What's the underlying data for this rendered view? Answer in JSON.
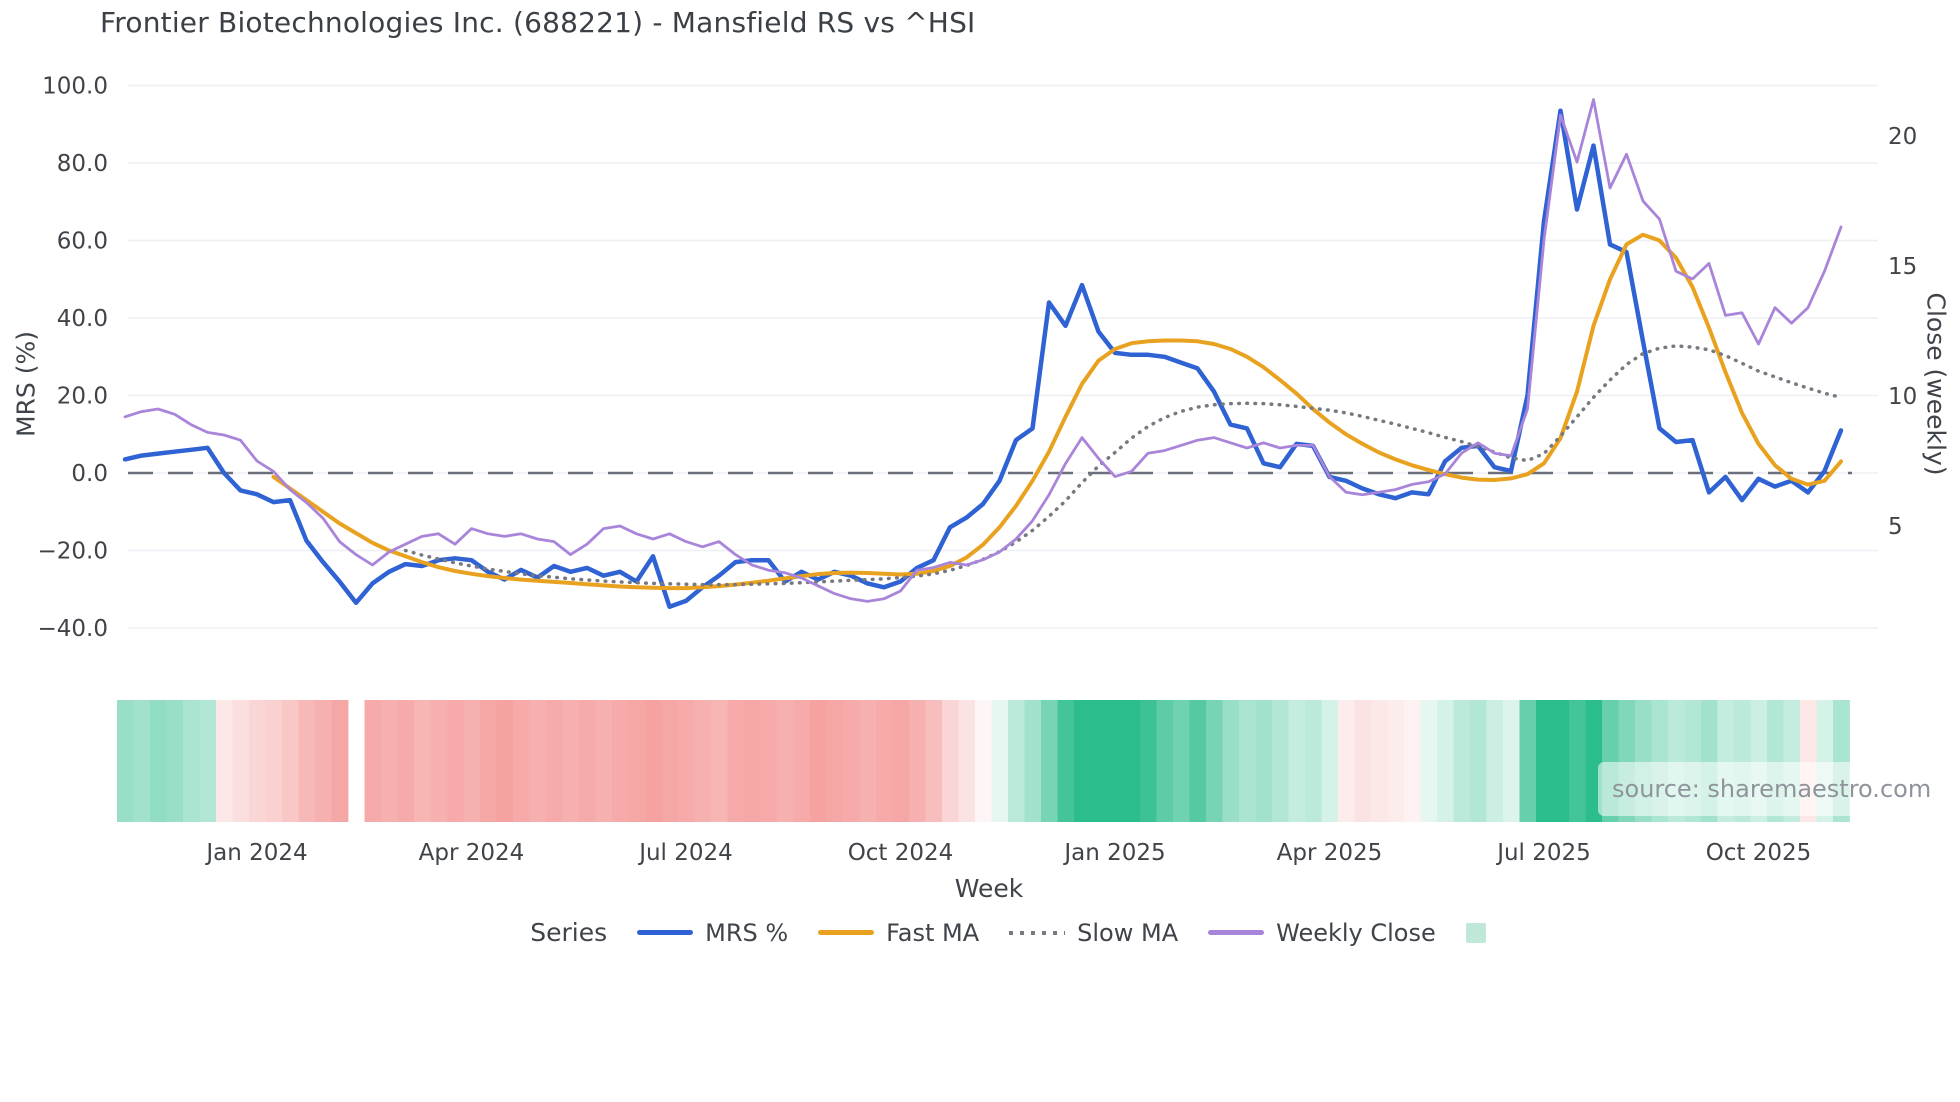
{
  "source": "source: sharemaestro.com",
  "legend": {
    "label": "Series"
  },
  "colors": {
    "mrs": "#2f62d3",
    "fast_ma": "#e9a21f",
    "slow_ma": "#76797f",
    "weekly_close": "#a985da",
    "zero_line": "#6b6f7a",
    "gridline": "#edeff4",
    "heat_green": "#2bbd8b",
    "heat_red": "#f28b89",
    "legend_square": "#bfe8d8",
    "tick_text": "#404449"
  },
  "chart_data": {
    "type": "line",
    "title": "Frontier Biotechnologies Inc. (688221) - Mansfield RS vs ^HSI",
    "x_axis": {
      "title": "Week",
      "tick_weeks": [
        8,
        21,
        34,
        47,
        60,
        73,
        86,
        99
      ],
      "tick_labels": [
        "Jan 2024",
        "Apr 2024",
        "Jul 2024",
        "Oct 2024",
        "Jan 2025",
        "Apr 2025",
        "Jul 2025",
        "Oct 2025"
      ]
    },
    "left_axis": {
      "title": "MRS (%)",
      "ticks": [
        100,
        80,
        60,
        40,
        20,
        0,
        -20,
        -40
      ],
      "tick_labels": [
        "100.0",
        "80.0",
        "60.0",
        "40.0",
        "20.0",
        "0.0",
        "−20.0",
        "−40.0"
      ]
    },
    "right_axis": {
      "title": "Close (weekly)",
      "ticks": [
        20,
        15,
        10,
        5
      ],
      "tick_labels": [
        "20",
        "15",
        "10",
        "5"
      ]
    },
    "weeks": 105,
    "zero_line": 0,
    "series": [
      {
        "name": "MRS %",
        "axis": "left",
        "style": "solid",
        "color": "#2f62d3",
        "values": [
          3.5,
          4.5,
          5,
          5.5,
          6,
          6.5,
          0,
          -4.5,
          -5.5,
          -7.5,
          -7,
          -17.5,
          -23,
          -28,
          -33.5,
          -28.5,
          -25.5,
          -23.5,
          -24,
          -22.5,
          -22,
          -22.5,
          -25.5,
          -27.5,
          -25,
          -27,
          -24,
          -25.5,
          -24.5,
          -26.5,
          -25.5,
          -28,
          -21.5,
          -34.5,
          -33,
          -29.5,
          -26.5,
          -23,
          -22.5,
          -22.5,
          -28,
          -25.5,
          -27.5,
          -25.5,
          -26.5,
          -28.5,
          -29.5,
          -28,
          -24.5,
          -22.5,
          -14,
          -11.5,
          -8,
          -2,
          8.5,
          11.5,
          44,
          38,
          48.5,
          36.5,
          31,
          30.5,
          30.5,
          30,
          28.5,
          27,
          21,
          12.5,
          11.5,
          2.5,
          1.5,
          7.5,
          7,
          -1,
          -2,
          -4,
          -5.5,
          -6.5,
          -5,
          -5.5,
          3,
          6.5,
          7,
          1.5,
          0.5,
          20,
          65,
          93.5,
          68,
          84.5,
          59,
          57,
          34,
          11.5,
          8,
          8.5,
          -5,
          -1,
          -7,
          -1.5,
          -3.5,
          -2,
          -5,
          0.5,
          11
        ]
      },
      {
        "name": "Fast MA",
        "axis": "left",
        "style": "solid",
        "color": "#e9a21f",
        "values": [
          null,
          null,
          null,
          null,
          null,
          null,
          null,
          null,
          null,
          -1,
          -4,
          -7,
          -10,
          -13,
          -15.5,
          -18,
          -20,
          -21.5,
          -23,
          -24.3,
          -25.3,
          -26,
          -26.6,
          -27.1,
          -27.5,
          -27.8,
          -28.1,
          -28.4,
          -28.7,
          -29,
          -29.3,
          -29.5,
          -29.6,
          -29.7,
          -29.7,
          -29.5,
          -29.2,
          -28.8,
          -28.3,
          -27.8,
          -27.2,
          -26.6,
          -26.1,
          -25.8,
          -25.7,
          -25.8,
          -26,
          -26.2,
          -26,
          -25.3,
          -24,
          -21.8,
          -18.5,
          -14,
          -8.5,
          -2,
          5.5,
          14.5,
          23,
          29,
          32,
          33.5,
          34,
          34.2,
          34.2,
          34,
          33.3,
          32,
          30,
          27.3,
          24,
          20.5,
          16.5,
          13,
          10,
          7.5,
          5.3,
          3.5,
          2,
          0.8,
          -0.3,
          -1.2,
          -1.7,
          -1.8,
          -1.4,
          -0.3,
          2.5,
          9,
          21,
          38,
          50,
          59,
          61.5,
          60,
          55.5,
          48,
          37.5,
          26,
          15.5,
          7.5,
          2,
          -1.5,
          -3,
          -2,
          3
        ]
      },
      {
        "name": "Slow MA",
        "axis": "left",
        "style": "dotted",
        "color": "#76797f",
        "values": [
          null,
          null,
          null,
          null,
          null,
          null,
          null,
          null,
          null,
          null,
          null,
          null,
          null,
          null,
          null,
          null,
          null,
          -20,
          -21.2,
          -22.2,
          -23.2,
          -24,
          -24.8,
          -25.4,
          -26,
          -26.5,
          -26.9,
          -27.3,
          -27.6,
          -27.9,
          -28.1,
          -28.3,
          -28.5,
          -28.6,
          -28.7,
          -28.8,
          -28.8,
          -28.8,
          -28.7,
          -28.6,
          -28.5,
          -28.3,
          -28.1,
          -27.9,
          -27.7,
          -27.5,
          -27.3,
          -27,
          -26.6,
          -26,
          -25.1,
          -23.9,
          -22.3,
          -20.3,
          -17.8,
          -14.8,
          -11.2,
          -7.2,
          -2.5,
          1.8,
          5.3,
          9,
          12,
          14.3,
          15.9,
          17,
          17.6,
          17.9,
          18,
          17.9,
          17.6,
          17.2,
          16.7,
          16.2,
          15.5,
          14.6,
          13.6,
          12.6,
          11.5,
          10.4,
          9.2,
          8.1,
          6.8,
          5.4,
          3.9,
          3.2,
          5,
          9.5,
          14.5,
          19.5,
          24,
          28,
          30.8,
          32.2,
          32.8,
          32.5,
          31.8,
          30.3,
          28.3,
          26.3,
          24.8,
          23.3,
          21.9,
          20.6,
          19.5
        ]
      },
      {
        "name": "Weekly Close",
        "axis": "right",
        "style": "solid",
        "color": "#a985da",
        "values": [
          9.2,
          9.4,
          9.5,
          9.3,
          8.9,
          8.6,
          8.5,
          8.3,
          7.5,
          7.1,
          6.4,
          5.9,
          5.3,
          4.4,
          3.9,
          3.5,
          4.0,
          4.3,
          4.6,
          4.7,
          4.3,
          4.9,
          4.7,
          4.6,
          4.7,
          4.5,
          4.4,
          3.9,
          4.3,
          4.9,
          5.0,
          4.7,
          4.5,
          4.7,
          4.4,
          4.2,
          4.4,
          3.9,
          3.5,
          3.3,
          3.2,
          3.0,
          2.7,
          2.4,
          2.2,
          2.1,
          2.2,
          2.5,
          3.3,
          3.4,
          3.6,
          3.5,
          3.7,
          4.0,
          4.5,
          5.2,
          6.2,
          7.4,
          8.4,
          7.6,
          6.9,
          7.1,
          7.8,
          7.9,
          8.1,
          8.3,
          8.4,
          8.2,
          8.0,
          8.2,
          8.0,
          8.1,
          8.1,
          6.9,
          6.3,
          6.2,
          6.3,
          6.4,
          6.6,
          6.7,
          7.0,
          7.8,
          8.2,
          7.8,
          7.7,
          9.5,
          16,
          20.8,
          19.0,
          21.4,
          18.0,
          19.3,
          17.5,
          16.8,
          14.8,
          14.5,
          15.1,
          13.1,
          13.2,
          12.0,
          13.4,
          12.8,
          13.4,
          14.8,
          16.5
        ]
      }
    ],
    "heatmap_strip": {
      "description": "weekly red/green intensity strip, null = missing week",
      "values": [
        1.2,
        1.1,
        1.3,
        1.2,
        1.0,
        0.9,
        -0.5,
        -0.7,
        -0.9,
        -1.0,
        -1.2,
        -1.5,
        -1.7,
        -1.9,
        null,
        -1.8,
        -1.7,
        -1.8,
        -1.6,
        -1.7,
        -1.8,
        -1.7,
        -1.9,
        -2.0,
        -1.8,
        -1.7,
        -1.8,
        -1.7,
        -1.8,
        -1.7,
        -1.8,
        -1.9,
        -2.0,
        -1.9,
        -1.8,
        -1.7,
        -1.6,
        -1.8,
        -1.9,
        -1.8,
        -1.7,
        -1.8,
        -2.0,
        -1.9,
        -1.8,
        -1.7,
        -1.8,
        -1.9,
        -1.7,
        -1.4,
        -0.9,
        -0.6,
        -0.2,
        0.3,
        0.8,
        1.1,
        1.6,
        2.2,
        2.6,
        2.8,
        2.5,
        2.7,
        2.3,
        1.9,
        1.7,
        2.0,
        1.6,
        1.2,
        1.0,
        1.1,
        0.9,
        0.7,
        0.8,
        0.5,
        -0.4,
        -0.6,
        -0.5,
        -0.4,
        -0.3,
        0.3,
        0.5,
        0.8,
        0.9,
        0.6,
        0.4,
        1.8,
        2.6,
        3.0,
        2.2,
        2.8,
        1.8,
        1.5,
        1.2,
        1.0,
        0.8,
        0.9,
        1.1,
        0.7,
        0.8,
        0.6,
        0.9,
        0.7,
        -0.5,
        0.5,
        1.0
      ]
    }
  }
}
